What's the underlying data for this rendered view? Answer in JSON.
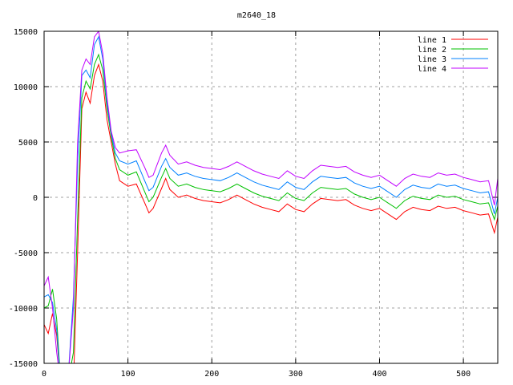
{
  "chart_data": {
    "type": "line",
    "title": "m2640_18",
    "xlabel": "",
    "ylabel": "",
    "xlim": [
      0,
      541
    ],
    "ylim": [
      -15000,
      15000
    ],
    "xticks": [
      0,
      100,
      200,
      300,
      400,
      500
    ],
    "yticks": [
      -15000,
      -10000,
      -5000,
      0,
      5000,
      10000,
      15000
    ],
    "grid": true,
    "legend_position": "top-right",
    "x": [
      0,
      5,
      10,
      15,
      20,
      28,
      35,
      40,
      45,
      50,
      55,
      60,
      65,
      70,
      75,
      80,
      85,
      90,
      100,
      110,
      120,
      125,
      130,
      140,
      145,
      150,
      160,
      170,
      180,
      190,
      200,
      210,
      220,
      230,
      240,
      250,
      260,
      270,
      280,
      290,
      300,
      310,
      320,
      330,
      340,
      350,
      360,
      370,
      380,
      390,
      400,
      410,
      420,
      430,
      440,
      450,
      460,
      470,
      480,
      490,
      500,
      510,
      520,
      530,
      537,
      541
    ],
    "series": [
      {
        "name": "line 1",
        "color": "#ff0000",
        "values": [
          -11500,
          -12300,
          -10500,
          -12500,
          -17000,
          -17000,
          -17000,
          -5000,
          8000,
          9500,
          8500,
          11000,
          12000,
          10500,
          7000,
          5000,
          3000,
          1500,
          1000,
          1200,
          -500,
          -1400,
          -1000,
          800,
          1700,
          700,
          0,
          200,
          -100,
          -300,
          -400,
          -500,
          -200,
          200,
          -200,
          -600,
          -900,
          -1100,
          -1300,
          -600,
          -1100,
          -1300,
          -600,
          -100,
          -200,
          -300,
          -200,
          -700,
          -1000,
          -1200,
          -1000,
          -1500,
          -2000,
          -1300,
          -900,
          -1100,
          -1200,
          -800,
          -1000,
          -900,
          -1200,
          -1400,
          -1600,
          -1500,
          -3200,
          -1800
        ]
      },
      {
        "name": "line 2",
        "color": "#00c000",
        "values": [
          -10000,
          -9800,
          -8300,
          -11000,
          -17000,
          -17000,
          -14000,
          -2000,
          9000,
          10500,
          9800,
          12000,
          12900,
          11500,
          8000,
          5500,
          3500,
          2500,
          2000,
          2300,
          500,
          -400,
          0,
          1800,
          2600,
          1700,
          1000,
          1200,
          900,
          700,
          600,
          500,
          800,
          1200,
          800,
          400,
          100,
          -100,
          -300,
          400,
          -100,
          -300,
          400,
          900,
          800,
          700,
          800,
          300,
          0,
          -200,
          0,
          -500,
          -1000,
          -300,
          100,
          -100,
          -200,
          200,
          0,
          100,
          -200,
          -400,
          -600,
          -500,
          -2000,
          -800
        ]
      },
      {
        "name": "line 3",
        "color": "#0080ff",
        "values": [
          -9000,
          -8800,
          -9500,
          -12000,
          -17000,
          -17000,
          -9000,
          3000,
          11000,
          11500,
          10800,
          13800,
          14500,
          12500,
          8500,
          5800,
          4000,
          3300,
          3000,
          3300,
          1500,
          600,
          900,
          2800,
          3500,
          2700,
          2000,
          2200,
          1900,
          1700,
          1600,
          1500,
          1800,
          2200,
          1800,
          1400,
          1100,
          900,
          700,
          1400,
          900,
          700,
          1400,
          1900,
          1800,
          1700,
          1800,
          1300,
          1000,
          800,
          1000,
          500,
          0,
          700,
          1100,
          900,
          800,
          1200,
          1000,
          1100,
          800,
          600,
          400,
          500,
          -1500,
          0
        ]
      },
      {
        "name": "line 4",
        "color": "#c000ff",
        "values": [
          -8000,
          -7200,
          -10000,
          -14000,
          -17000,
          -17000,
          -10000,
          5000,
          11500,
          12500,
          12000,
          14500,
          15000,
          13000,
          9000,
          6000,
          4500,
          4000,
          4200,
          4300,
          2700,
          1800,
          2000,
          4000,
          4700,
          3800,
          3000,
          3200,
          2900,
          2700,
          2600,
          2500,
          2800,
          3200,
          2800,
          2400,
          2100,
          1900,
          1700,
          2400,
          1900,
          1700,
          2400,
          2900,
          2800,
          2700,
          2800,
          2300,
          2000,
          1800,
          2000,
          1500,
          1000,
          1700,
          2100,
          1900,
          1800,
          2200,
          2000,
          2100,
          1800,
          1600,
          1400,
          1500,
          -700,
          1700
        ]
      }
    ]
  }
}
